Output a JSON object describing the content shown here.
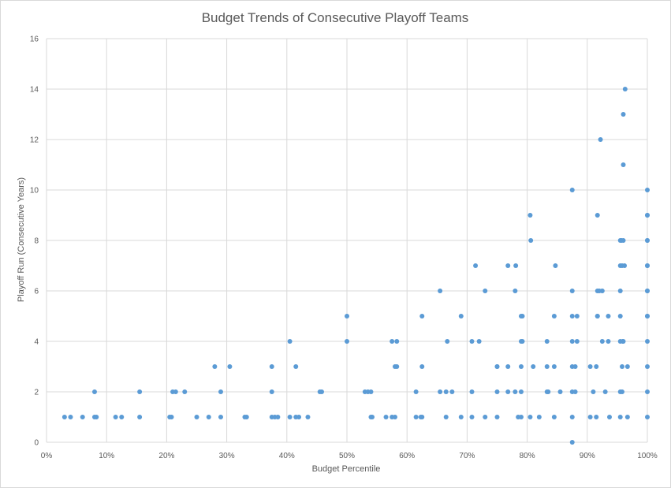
{
  "chart_data": {
    "type": "scatter",
    "title": "Budget Trends of Consecutive Playoff Teams",
    "xlabel": "Budget Percentile",
    "ylabel": "Playoff Run (Consecutive Years)",
    "xlim": [
      0,
      1
    ],
    "ylim": [
      0,
      16
    ],
    "x_ticks": [
      0,
      0.1,
      0.2,
      0.3,
      0.4,
      0.5,
      0.6,
      0.7,
      0.8,
      0.9,
      1.0
    ],
    "x_tick_labels": [
      "0%",
      "10%",
      "20%",
      "30%",
      "40%",
      "50%",
      "60%",
      "70%",
      "80%",
      "90%",
      "100%"
    ],
    "y_ticks": [
      0,
      2,
      4,
      6,
      8,
      10,
      12,
      14,
      16
    ],
    "y_tick_labels": [
      "0",
      "2",
      "4",
      "6",
      "8",
      "10",
      "12",
      "14",
      "16"
    ],
    "grid": true,
    "legend": "none",
    "marker_color": "#5b9bd5",
    "points": [
      [
        0.03,
        1
      ],
      [
        0.04,
        1
      ],
      [
        0.06,
        1
      ],
      [
        0.08,
        1
      ],
      [
        0.083,
        1
      ],
      [
        0.08,
        2
      ],
      [
        0.115,
        1
      ],
      [
        0.125,
        1
      ],
      [
        0.155,
        1
      ],
      [
        0.155,
        2
      ],
      [
        0.205,
        1
      ],
      [
        0.208,
        1
      ],
      [
        0.21,
        2
      ],
      [
        0.215,
        2
      ],
      [
        0.23,
        2
      ],
      [
        0.25,
        1
      ],
      [
        0.27,
        1
      ],
      [
        0.28,
        3
      ],
      [
        0.29,
        1
      ],
      [
        0.29,
        2
      ],
      [
        0.305,
        3
      ],
      [
        0.33,
        1
      ],
      [
        0.333,
        1
      ],
      [
        0.375,
        1
      ],
      [
        0.375,
        2
      ],
      [
        0.375,
        3
      ],
      [
        0.38,
        1
      ],
      [
        0.385,
        1
      ],
      [
        0.405,
        1
      ],
      [
        0.405,
        4
      ],
      [
        0.415,
        1
      ],
      [
        0.415,
        3
      ],
      [
        0.42,
        1
      ],
      [
        0.435,
        1
      ],
      [
        0.455,
        2
      ],
      [
        0.458,
        2
      ],
      [
        0.5,
        4
      ],
      [
        0.5,
        5
      ],
      [
        0.53,
        2
      ],
      [
        0.535,
        2
      ],
      [
        0.54,
        2
      ],
      [
        0.54,
        1
      ],
      [
        0.542,
        1
      ],
      [
        0.565,
        1
      ],
      [
        0.575,
        1
      ],
      [
        0.575,
        4
      ],
      [
        0.58,
        1
      ],
      [
        0.58,
        3
      ],
      [
        0.583,
        3
      ],
      [
        0.583,
        4
      ],
      [
        0.615,
        1
      ],
      [
        0.615,
        2
      ],
      [
        0.623,
        1
      ],
      [
        0.625,
        1
      ],
      [
        0.625,
        3
      ],
      [
        0.625,
        5
      ],
      [
        0.655,
        2
      ],
      [
        0.655,
        6
      ],
      [
        0.665,
        1
      ],
      [
        0.665,
        2
      ],
      [
        0.667,
        4
      ],
      [
        0.675,
        2
      ],
      [
        0.69,
        1
      ],
      [
        0.69,
        5
      ],
      [
        0.708,
        1
      ],
      [
        0.708,
        2
      ],
      [
        0.708,
        4
      ],
      [
        0.714,
        7
      ],
      [
        0.72,
        4
      ],
      [
        0.73,
        1
      ],
      [
        0.73,
        6
      ],
      [
        0.75,
        1
      ],
      [
        0.75,
        2
      ],
      [
        0.75,
        3
      ],
      [
        0.75,
        3
      ],
      [
        0.768,
        2
      ],
      [
        0.768,
        3
      ],
      [
        0.768,
        7
      ],
      [
        0.78,
        2
      ],
      [
        0.78,
        6
      ],
      [
        0.781,
        7
      ],
      [
        0.785,
        1
      ],
      [
        0.79,
        1
      ],
      [
        0.79,
        2
      ],
      [
        0.79,
        3
      ],
      [
        0.79,
        4
      ],
      [
        0.792,
        4
      ],
      [
        0.79,
        5
      ],
      [
        0.792,
        5
      ],
      [
        0.805,
        1
      ],
      [
        0.805,
        9
      ],
      [
        0.806,
        8
      ],
      [
        0.81,
        3
      ],
      [
        0.82,
        1
      ],
      [
        0.833,
        2
      ],
      [
        0.833,
        3
      ],
      [
        0.833,
        4
      ],
      [
        0.835,
        2
      ],
      [
        0.845,
        1
      ],
      [
        0.845,
        3
      ],
      [
        0.845,
        5
      ],
      [
        0.847,
        7
      ],
      [
        0.855,
        2
      ],
      [
        0.875,
        0
      ],
      [
        0.875,
        1
      ],
      [
        0.875,
        2
      ],
      [
        0.875,
        3
      ],
      [
        0.875,
        4
      ],
      [
        0.875,
        5
      ],
      [
        0.875,
        6
      ],
      [
        0.875,
        10
      ],
      [
        0.88,
        2
      ],
      [
        0.88,
        3
      ],
      [
        0.883,
        4
      ],
      [
        0.883,
        5
      ],
      [
        0.905,
        1
      ],
      [
        0.905,
        3
      ],
      [
        0.91,
        2
      ],
      [
        0.915,
        1
      ],
      [
        0.915,
        3
      ],
      [
        0.917,
        5
      ],
      [
        0.917,
        5
      ],
      [
        0.917,
        6
      ],
      [
        0.917,
        9
      ],
      [
        0.92,
        6
      ],
      [
        0.922,
        12
      ],
      [
        0.925,
        4
      ],
      [
        0.925,
        6
      ],
      [
        0.93,
        2
      ],
      [
        0.935,
        4
      ],
      [
        0.935,
        5
      ],
      [
        0.937,
        1
      ],
      [
        0.955,
        1
      ],
      [
        0.955,
        2
      ],
      [
        0.955,
        4
      ],
      [
        0.955,
        5
      ],
      [
        0.955,
        6
      ],
      [
        0.955,
        7
      ],
      [
        0.955,
        8
      ],
      [
        0.957,
        8
      ],
      [
        0.958,
        2
      ],
      [
        0.958,
        3
      ],
      [
        0.958,
        7
      ],
      [
        0.959,
        4
      ],
      [
        0.96,
        4
      ],
      [
        0.96,
        8
      ],
      [
        0.96,
        11
      ],
      [
        0.96,
        13
      ],
      [
        0.962,
        7
      ],
      [
        0.963,
        14
      ],
      [
        0.967,
        1
      ],
      [
        0.967,
        3
      ],
      [
        1.0,
        1
      ],
      [
        1.0,
        2
      ],
      [
        1.0,
        3
      ],
      [
        1.0,
        4
      ],
      [
        1.0,
        5
      ],
      [
        1.0,
        5
      ],
      [
        1.0,
        6
      ],
      [
        1.0,
        6
      ],
      [
        1.0,
        7
      ],
      [
        1.0,
        7
      ],
      [
        1.0,
        8
      ],
      [
        1.0,
        8
      ],
      [
        1.0,
        9
      ],
      [
        1.0,
        9
      ],
      [
        1.0,
        10
      ]
    ]
  }
}
